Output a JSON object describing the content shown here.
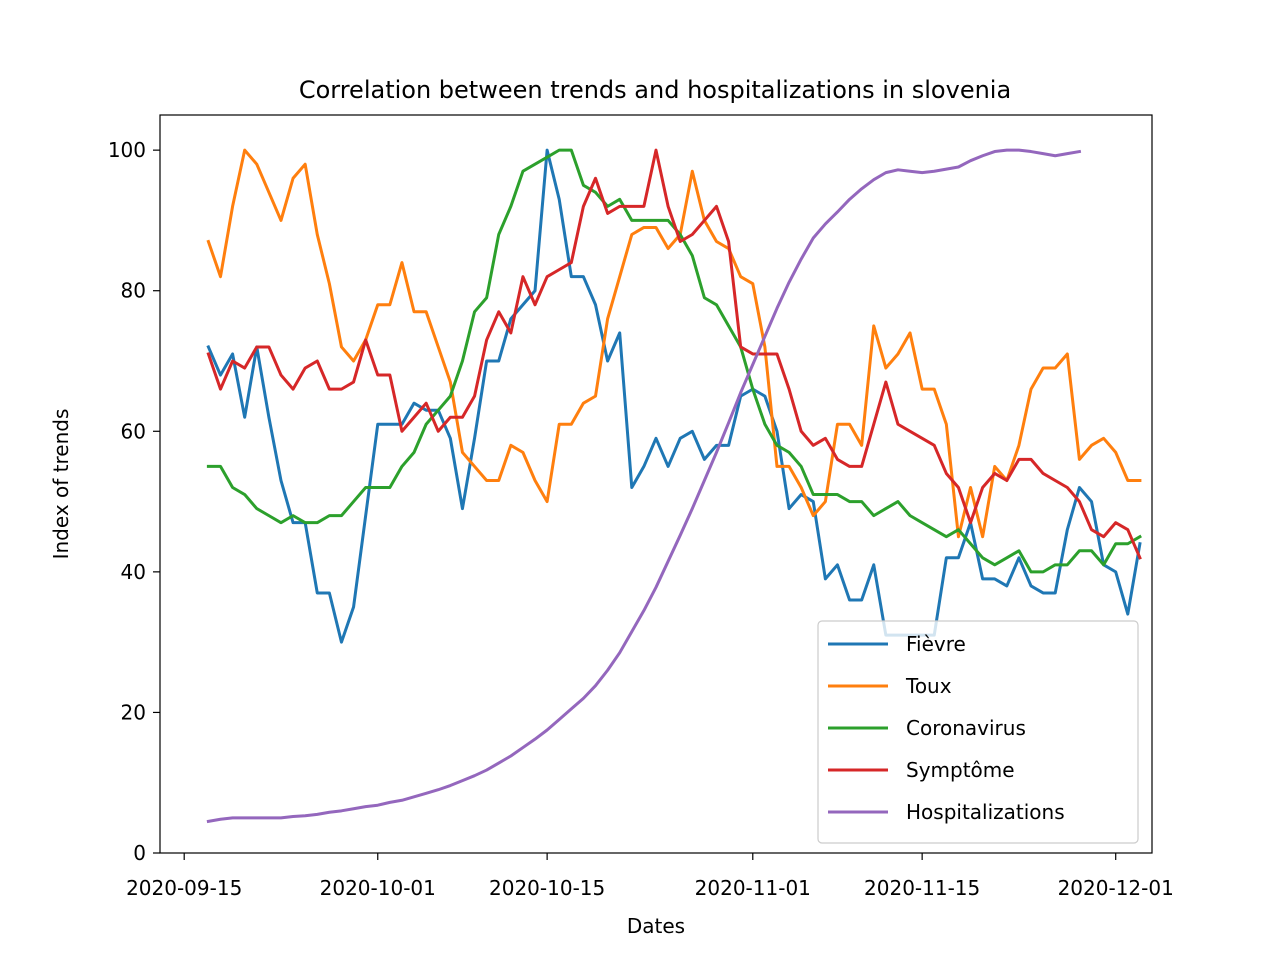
{
  "chart_data": {
    "type": "line",
    "title": "Correlation between trends and hospitalizations in slovenia",
    "xlabel": "Dates",
    "ylabel": "Index of trends",
    "ylim": [
      0,
      105
    ],
    "xlim": [
      "2020-09-13",
      "2020-12-04"
    ],
    "yticks": [
      0,
      20,
      40,
      60,
      80,
      100
    ],
    "xticks": [
      "2020-09-15",
      "2020-10-01",
      "2020-10-15",
      "2020-11-01",
      "2020-11-15",
      "2020-12-01"
    ],
    "legend_position": "lower-right",
    "grid": false,
    "x_start": "2020-09-17",
    "series": [
      {
        "name": "Fièvre",
        "color": "#1f77b4",
        "values": [
          72,
          68,
          71,
          62,
          72,
          62,
          53,
          47,
          47,
          37,
          37,
          30,
          35,
          48,
          61,
          61,
          61,
          64,
          63,
          63,
          59,
          49,
          59,
          70,
          70,
          76,
          78,
          80,
          100,
          93,
          82,
          82,
          78,
          70,
          74,
          52,
          55,
          59,
          55,
          59,
          60,
          56,
          58,
          58,
          65,
          66,
          65,
          60,
          49,
          51,
          50,
          39,
          41,
          36,
          36,
          41,
          31,
          31,
          31,
          31,
          31,
          42,
          42,
          47,
          39,
          39,
          38,
          42,
          38,
          37,
          37,
          46,
          52,
          50,
          41,
          40,
          34,
          44
        ]
      },
      {
        "name": "Toux",
        "color": "#ff7f0e",
        "values": [
          87,
          82,
          92,
          100,
          98,
          94,
          90,
          96,
          98,
          88,
          81,
          72,
          70,
          73,
          78,
          78,
          84,
          77,
          77,
          72,
          67,
          57,
          55,
          53,
          53,
          58,
          57,
          53,
          50,
          61,
          61,
          64,
          65,
          76,
          82,
          88,
          89,
          89,
          86,
          88,
          97,
          90,
          87,
          86,
          82,
          81,
          72,
          55,
          55,
          52,
          48,
          50,
          61,
          61,
          58,
          75,
          69,
          71,
          74,
          66,
          66,
          61,
          45,
          52,
          45,
          55,
          53,
          58,
          66,
          69,
          69,
          71,
          56,
          58,
          59,
          57,
          53,
          53
        ]
      },
      {
        "name": "Coronavirus",
        "color": "#2ca02c",
        "values": [
          55,
          55,
          52,
          51,
          49,
          48,
          47,
          48,
          47,
          47,
          48,
          48,
          50,
          52,
          52,
          52,
          55,
          57,
          61,
          63,
          65,
          70,
          77,
          79,
          88,
          92,
          97,
          98,
          99,
          100,
          100,
          95,
          94,
          92,
          93,
          90,
          90,
          90,
          90,
          88,
          85,
          79,
          78,
          75,
          72,
          66,
          61,
          58,
          57,
          55,
          51,
          51,
          51,
          50,
          50,
          48,
          49,
          50,
          48,
          47,
          46,
          45,
          46,
          44,
          42,
          41,
          42,
          43,
          40,
          40,
          41,
          41,
          43,
          43,
          41,
          44,
          44,
          45
        ]
      },
      {
        "name": "Symptôme",
        "color": "#d62728",
        "values": [
          71,
          66,
          70,
          69,
          72,
          72,
          68,
          66,
          69,
          70,
          66,
          66,
          67,
          73,
          68,
          68,
          60,
          62,
          64,
          60,
          62,
          62,
          65,
          73,
          77,
          74,
          82,
          78,
          82,
          83,
          84,
          92,
          96,
          91,
          92,
          92,
          92,
          100,
          92,
          87,
          88,
          90,
          92,
          87,
          72,
          71,
          71,
          71,
          66,
          60,
          58,
          59,
          56,
          55,
          55,
          61,
          67,
          61,
          60,
          59,
          58,
          54,
          52,
          47,
          52,
          54,
          53,
          56,
          56,
          54,
          53,
          52,
          50,
          46,
          45,
          47,
          46,
          42
        ]
      },
      {
        "name": "Hospitalizations",
        "color": "#9467bd",
        "values": [
          4.5,
          4.8,
          5.0,
          5.0,
          5.0,
          5.0,
          5.0,
          5.2,
          5.3,
          5.5,
          5.8,
          6.0,
          6.3,
          6.6,
          6.8,
          7.2,
          7.5,
          8.0,
          8.5,
          9.0,
          9.6,
          10.3,
          11.0,
          11.8,
          12.8,
          13.8,
          15.0,
          16.2,
          17.5,
          19.0,
          20.5,
          22.0,
          23.8,
          26.0,
          28.5,
          31.5,
          34.5,
          37.8,
          41.5,
          45.2,
          49.0,
          53.0,
          57.0,
          61.2,
          65.5,
          69.5,
          73.5,
          77.5,
          81.2,
          84.5,
          87.5,
          89.5,
          91.2,
          93.0,
          94.5,
          95.8,
          96.8,
          97.2,
          97.0,
          96.8,
          97.0,
          97.3,
          97.6,
          98.5,
          99.2,
          99.8,
          100.0,
          100.0,
          99.8,
          99.5,
          99.2,
          99.5,
          99.8
        ]
      }
    ]
  }
}
